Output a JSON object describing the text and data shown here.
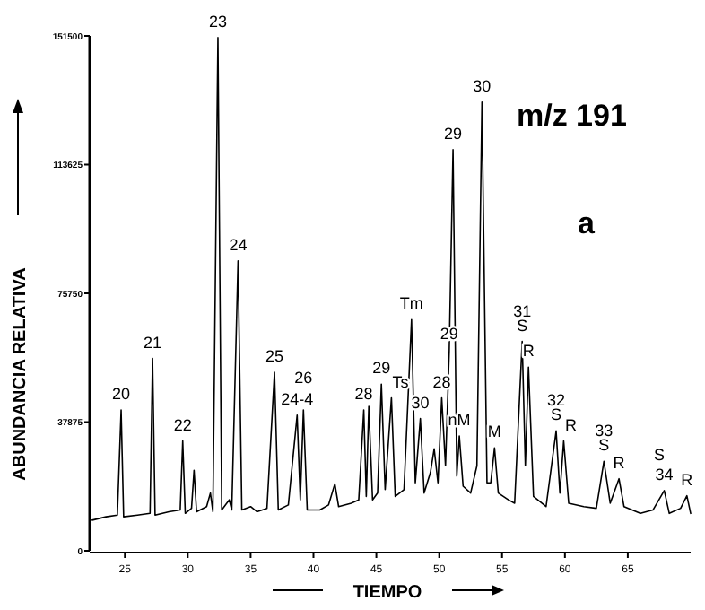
{
  "chart_data": {
    "type": "line",
    "xlabel": "TIEMPO",
    "ylabel": "ABUNDANCIA RELATIVA",
    "xlim": [
      22.2,
      70
    ],
    "xticks": [
      25,
      30,
      35,
      40,
      45,
      50,
      55,
      60,
      65
    ],
    "ylim": [
      0,
      151500
    ],
    "yticks": [
      0,
      37875,
      75750,
      113625,
      151500
    ],
    "grid": false,
    "marker": "none",
    "line_style": "solid",
    "series": [
      {
        "color": "#000000",
        "x": [
          22.4,
          23.5,
          24.4,
          24.7,
          24.9,
          26,
          27.0,
          27.2,
          27.4,
          28.5,
          29.4,
          29.6,
          29.8,
          30.3,
          30.5,
          30.7,
          31.5,
          31.8,
          32.0,
          32.4,
          32.7,
          33.3,
          33.5,
          34.0,
          34.3,
          35.0,
          35.5,
          36.3,
          36.9,
          37.2,
          38.0,
          38.7,
          38.95,
          39.2,
          39.5,
          40.5,
          41.2,
          41.7,
          42.0,
          43.0,
          43.6,
          44.0,
          44.2,
          44.4,
          44.7,
          45.1,
          45.4,
          45.7,
          46.2,
          46.5,
          47.2,
          47.8,
          48.1,
          48.5,
          48.8,
          49.3,
          49.6,
          49.9,
          50.2,
          50.5,
          50.8,
          51.1,
          51.4,
          51.6,
          51.9,
          52.5,
          53.0,
          53.4,
          53.8,
          54.1,
          54.4,
          54.7,
          55.5,
          56.0,
          56.6,
          56.85,
          57.1,
          57.5,
          58.5,
          59.3,
          59.6,
          59.9,
          60.3,
          61.5,
          62.5,
          63.1,
          63.6,
          64.3,
          64.7,
          66.0,
          67.0,
          67.9,
          68.3,
          69.2,
          69.7,
          70.0
        ],
        "values": [
          9000,
          10000,
          10500,
          41400,
          10000,
          10500,
          11000,
          56600,
          10500,
          11500,
          12000,
          32300,
          11000,
          12500,
          23700,
          11500,
          13000,
          17000,
          11500,
          151000,
          12000,
          15000,
          12000,
          85300,
          12000,
          13000,
          11500,
          12500,
          52500,
          12000,
          13500,
          39900,
          15000,
          41400,
          12000,
          12000,
          13500,
          19700,
          13000,
          14000,
          15000,
          41400,
          16000,
          42500,
          15000,
          17000,
          49000,
          18000,
          45000,
          16000,
          18000,
          68000,
          20000,
          38900,
          17000,
          23000,
          30000,
          20000,
          45000,
          25000,
          59000,
          118000,
          22000,
          33800,
          19000,
          17000,
          25000,
          132000,
          20000,
          20000,
          30300,
          17000,
          15000,
          14000,
          61600,
          25000,
          54000,
          16000,
          13000,
          35300,
          17000,
          32300,
          14000,
          13000,
          12500,
          26300,
          14000,
          21200,
          13000,
          11000,
          12000,
          17700,
          11000,
          12500,
          16200,
          11000
        ]
      }
    ],
    "annotations": [
      "m/z 191",
      "a",
      {
        "text": "20",
        "x": 24.7,
        "y": 41400
      },
      {
        "text": "21",
        "x": 27.2,
        "y": 56600
      },
      {
        "text": "22",
        "x": 29.6,
        "y": 32300
      },
      {
        "text": "23",
        "x": 32.4,
        "y": 151000
      },
      {
        "text": "24",
        "x": 34.0,
        "y": 85300
      },
      {
        "text": "25",
        "x": 36.9,
        "y": 52500
      },
      {
        "text": "24-4",
        "x": 38.7,
        "y": 39900
      },
      {
        "text": "26",
        "x": 39.2,
        "y": 41400
      },
      {
        "text": "28",
        "x": 44.0,
        "y": 41400
      },
      {
        "text": "29",
        "x": 45.4,
        "y": 49000
      },
      {
        "text": "Ts",
        "x": 46.2,
        "y": 45000
      },
      {
        "text": "Tm",
        "x": 47.8,
        "y": 68000
      },
      {
        "text": "30",
        "x": 48.5,
        "y": 38900
      },
      {
        "text": "28",
        "x": 50.2,
        "y": 45000
      },
      {
        "text": "29",
        "x": 50.8,
        "y": 59000
      },
      {
        "text": "nM",
        "x": 51.6,
        "y": 33800
      },
      {
        "text": "29",
        "x": 51.1,
        "y": 118000
      },
      {
        "text": "30",
        "x": 53.4,
        "y": 132000
      },
      {
        "text": "M",
        "x": 54.4,
        "y": 30300
      },
      {
        "text": "31\nS",
        "x": 56.6,
        "y": 61600
      },
      {
        "text": "R",
        "x": 57.1,
        "y": 54000
      },
      {
        "text": "32\nS",
        "x": 59.3,
        "y": 35300
      },
      {
        "text": "R",
        "x": 59.9,
        "y": 32300
      },
      {
        "text": "33\nS",
        "x": 63.1,
        "y": 26300
      },
      {
        "text": "R",
        "x": 64.3,
        "y": 21200
      },
      {
        "text": "34",
        "x": 67.9,
        "y": 17700
      },
      {
        "text": "S",
        "x": 67.5,
        "y": 14000
      },
      {
        "text": "R",
        "x": 69.7,
        "y": 16200
      }
    ]
  }
}
